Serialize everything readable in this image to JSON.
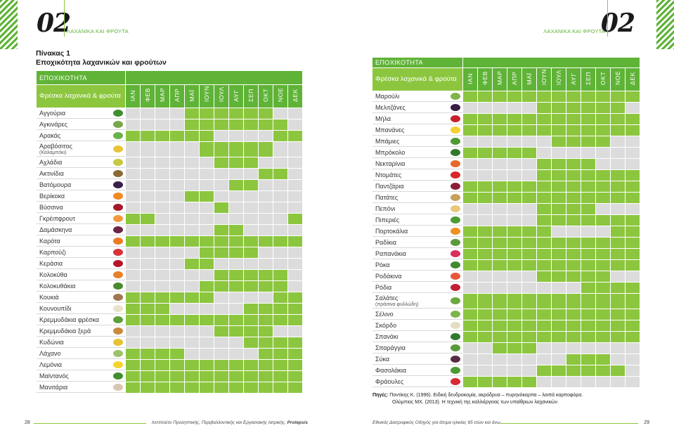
{
  "left_page": {
    "chapter_number": "02",
    "chapter_label": "ΛΑΧΑΝΙΚΑ ΚΑΙ ΦΡΟΥΤΑ",
    "table_title_line1": "Πίνακας 1",
    "table_title_line2": "Εποχικότητα λαχανικών και φρούτων",
    "page_number": "28",
    "footer_text": "Ινστιτούτο Προληπτικής, Περιβαλλοντικής και Εργασιακής Ιατρικής, ",
    "footer_brand": "Prolepsis"
  },
  "right_page": {
    "chapter_number": "02",
    "chapter_label": "ΛΑΧΑΝΙΚΑ ΚΑΙ ΦΡΟΥΤΑ",
    "page_number": "29",
    "footer_text": "Εθνικός Διατροφικός Οδηγός για άτομα ηλικίας 65 ετών και άνω"
  },
  "table_headers": {
    "season": "ΕΠΟΧΙΚΟΤΗΤΑ",
    "fresh": "Φρέσκα λαχανικά & φρούτα",
    "months": [
      "ΙΑΝ",
      "ΦΕΒ",
      "ΜΑΡ",
      "ΑΠΡ",
      "ΜΑΪ",
      "ΙΟΥΝ",
      "ΙΟΥΛ",
      "ΑΥΓ",
      "ΣΕΠ",
      "ΟΚΤ",
      "ΝΟΕ",
      "ΔΕΚ"
    ]
  },
  "sources": {
    "label": "Πηγές:",
    "line1": " Ποντίκης Κ. (1996). Ειδική δενδροκομία, ακρόδρυα – πυρηνόκαρπα – λοιπά καρποφόρα.",
    "line2": "Ολύμπιος ΜΧ. (2013). Η τεχνική της καλλιέργειας των υπαίθριων λαχανικών."
  },
  "chart_data": {
    "type": "table",
    "columns": [
      "ΙΑΝ",
      "ΦΕΒ",
      "ΜΑΡ",
      "ΑΠΡ",
      "ΜΑΪ",
      "ΙΟΥΝ",
      "ΙΟΥΛ",
      "ΑΥΓ",
      "ΣΕΠ",
      "ΟΚΤ",
      "ΝΟΕ",
      "ΔΕΚ"
    ],
    "left_rows": [
      {
        "name": "Αγγούρια",
        "icon": "cucumber-icon",
        "color": "#3f8f2e",
        "months": [
          0,
          0,
          0,
          0,
          1,
          1,
          1,
          1,
          1,
          1,
          0,
          0
        ]
      },
      {
        "name": "Αγκινάρες",
        "icon": "artichoke-icon",
        "color": "#7aa64a",
        "months": [
          0,
          0,
          0,
          0,
          1,
          1,
          1,
          1,
          1,
          1,
          1,
          0
        ]
      },
      {
        "name": "Αρακάς",
        "icon": "peas-icon",
        "color": "#6ab04c",
        "months": [
          1,
          1,
          1,
          1,
          1,
          1,
          0,
          0,
          0,
          0,
          1,
          1
        ]
      },
      {
        "name": "Αραβόσιτος",
        "sub": "(Καλαμπόκι)",
        "icon": "corn-icon",
        "color": "#e8c43a",
        "months": [
          0,
          0,
          0,
          0,
          0,
          1,
          1,
          1,
          1,
          1,
          0,
          0
        ]
      },
      {
        "name": "Αχλάδια",
        "icon": "pear-icon",
        "color": "#c6c93d",
        "months": [
          0,
          0,
          0,
          0,
          0,
          0,
          1,
          1,
          1,
          0,
          0,
          0
        ]
      },
      {
        "name": "Ακτινίδια",
        "icon": "kiwi-icon",
        "color": "#8a6a33",
        "months": [
          0,
          0,
          0,
          0,
          0,
          0,
          0,
          0,
          0,
          1,
          1,
          0
        ]
      },
      {
        "name": "Βατόμουρα",
        "icon": "blackberries-icon",
        "color": "#3a1f4a",
        "months": [
          0,
          0,
          0,
          0,
          0,
          0,
          0,
          1,
          1,
          0,
          0,
          0
        ]
      },
      {
        "name": "Βερίκοκα",
        "icon": "apricot-icon",
        "color": "#f08a24",
        "months": [
          0,
          0,
          0,
          0,
          1,
          1,
          0,
          0,
          0,
          0,
          0,
          0
        ]
      },
      {
        "name": "Βύσσινα",
        "icon": "sour-cherries-icon",
        "color": "#a5182a",
        "months": [
          0,
          0,
          0,
          0,
          0,
          0,
          1,
          0,
          0,
          0,
          0,
          0
        ]
      },
      {
        "name": "Γκρέιπφρουτ",
        "icon": "grapefruit-icon",
        "color": "#f29a3b",
        "months": [
          1,
          1,
          0,
          0,
          0,
          0,
          0,
          0,
          0,
          0,
          0,
          1
        ]
      },
      {
        "name": "Δαμάσκηνα",
        "icon": "plums-icon",
        "color": "#6b2545",
        "months": [
          0,
          0,
          0,
          0,
          0,
          0,
          1,
          1,
          0,
          0,
          0,
          0
        ]
      },
      {
        "name": "Καρότα",
        "icon": "carrot-icon",
        "color": "#ec7a23",
        "months": [
          1,
          1,
          1,
          1,
          1,
          1,
          1,
          1,
          1,
          1,
          1,
          1
        ]
      },
      {
        "name": "Καρπούζι",
        "icon": "watermelon-icon",
        "color": "#d8323a",
        "months": [
          0,
          0,
          0,
          0,
          0,
          1,
          1,
          1,
          1,
          0,
          0,
          0
        ]
      },
      {
        "name": "Κεράσια",
        "icon": "cherries-icon",
        "color": "#b5142a",
        "months": [
          0,
          0,
          0,
          0,
          1,
          1,
          0,
          0,
          0,
          0,
          0,
          0
        ]
      },
      {
        "name": "Κολοκύθα",
        "icon": "pumpkin-icon",
        "color": "#e9802a",
        "months": [
          0,
          0,
          0,
          0,
          0,
          0,
          1,
          1,
          1,
          1,
          1,
          0
        ]
      },
      {
        "name": "Κολοκυθάκια",
        "icon": "zucchini-icon",
        "color": "#4c8a2e",
        "months": [
          0,
          0,
          0,
          0,
          0,
          1,
          1,
          1,
          1,
          1,
          1,
          0
        ]
      },
      {
        "name": "Κουκιά",
        "icon": "broad-beans-icon",
        "color": "#a07850",
        "months": [
          1,
          1,
          1,
          1,
          1,
          1,
          0,
          0,
          0,
          0,
          1,
          1
        ]
      },
      {
        "name": "Κουνουπίδι",
        "icon": "cauliflower-icon",
        "color": "#e7e2c8",
        "months": [
          1,
          1,
          1,
          0,
          0,
          0,
          0,
          0,
          1,
          1,
          1,
          1
        ]
      },
      {
        "name": "Κρεμμυδάκια φρέσκα",
        "icon": "spring-onions-icon",
        "color": "#5c9e3a",
        "months": [
          1,
          1,
          1,
          1,
          1,
          1,
          1,
          1,
          1,
          1,
          1,
          1
        ]
      },
      {
        "name": "Κρεμμυδάκια ξερά",
        "icon": "dry-onions-icon",
        "color": "#c88a3c",
        "months": [
          0,
          0,
          0,
          0,
          0,
          0,
          1,
          1,
          1,
          1,
          0,
          0
        ]
      },
      {
        "name": "Κυδώνια",
        "icon": "quinces-icon",
        "color": "#e6c230",
        "months": [
          0,
          0,
          0,
          0,
          0,
          0,
          0,
          0,
          1,
          1,
          1,
          1
        ]
      },
      {
        "name": "Λάχανο",
        "icon": "cabbage-icon",
        "color": "#9cc26a",
        "months": [
          1,
          1,
          1,
          1,
          0,
          0,
          0,
          0,
          0,
          1,
          1,
          1
        ]
      },
      {
        "name": "Λεμόνια",
        "icon": "lemons-icon",
        "color": "#f2d42c",
        "months": [
          1,
          1,
          1,
          1,
          1,
          1,
          1,
          1,
          1,
          1,
          1,
          1
        ]
      },
      {
        "name": "Μαϊντανός",
        "icon": "parsley-icon",
        "color": "#3f8f2e",
        "months": [
          1,
          1,
          1,
          1,
          1,
          1,
          1,
          1,
          1,
          1,
          1,
          1
        ]
      },
      {
        "name": "Μανιτάρια",
        "icon": "mushrooms-icon",
        "color": "#d8c7b0",
        "months": [
          1,
          1,
          1,
          1,
          1,
          1,
          1,
          1,
          1,
          1,
          1,
          1
        ]
      }
    ],
    "right_rows": [
      {
        "name": "Μαρούλι",
        "icon": "lettuce-icon",
        "color": "#7fb548",
        "months": [
          1,
          1,
          1,
          1,
          1,
          1,
          1,
          1,
          1,
          1,
          1,
          1
        ]
      },
      {
        "name": "Μελιτζάνες",
        "icon": "eggplant-icon",
        "color": "#3a1d45",
        "months": [
          0,
          0,
          0,
          0,
          0,
          1,
          1,
          1,
          1,
          1,
          1,
          0
        ]
      },
      {
        "name": "Μήλα",
        "icon": "apple-icon",
        "color": "#c8202a",
        "months": [
          1,
          1,
          1,
          1,
          1,
          1,
          1,
          1,
          1,
          1,
          1,
          1
        ]
      },
      {
        "name": "Μπανάνες",
        "icon": "banana-icon",
        "color": "#f3d02e",
        "months": [
          1,
          1,
          1,
          1,
          1,
          1,
          1,
          1,
          1,
          1,
          1,
          1
        ]
      },
      {
        "name": "Μπάμιες",
        "icon": "okra-icon",
        "color": "#4f9a34",
        "months": [
          0,
          0,
          0,
          0,
          0,
          0,
          1,
          1,
          1,
          1,
          0,
          0
        ]
      },
      {
        "name": "Μπρόκολο",
        "icon": "broccoli-icon",
        "color": "#2f7a2a",
        "months": [
          1,
          1,
          1,
          1,
          1,
          0,
          0,
          0,
          0,
          0,
          0,
          0
        ]
      },
      {
        "name": "Νεκταρίνια",
        "icon": "nectarine-icon",
        "color": "#e66a2c",
        "months": [
          0,
          0,
          0,
          0,
          0,
          1,
          1,
          1,
          1,
          0,
          0,
          0
        ]
      },
      {
        "name": "Ντομάτες",
        "icon": "tomatoes-icon",
        "color": "#d9262a",
        "months": [
          0,
          0,
          0,
          0,
          0,
          1,
          1,
          1,
          1,
          1,
          1,
          1
        ]
      },
      {
        "name": "Παντζάρια",
        "icon": "beets-icon",
        "color": "#8a1f3a",
        "months": [
          1,
          1,
          1,
          1,
          1,
          1,
          1,
          1,
          1,
          1,
          1,
          1
        ]
      },
      {
        "name": "Πατάτες",
        "icon": "potatoes-icon",
        "color": "#c7a05a",
        "months": [
          1,
          1,
          1,
          1,
          1,
          1,
          1,
          1,
          1,
          1,
          1,
          1
        ]
      },
      {
        "name": "Πεπόνι",
        "icon": "melon-icon",
        "color": "#e9c77a",
        "months": [
          0,
          0,
          0,
          0,
          0,
          1,
          1,
          1,
          1,
          0,
          0,
          0
        ]
      },
      {
        "name": "Πιπεριές",
        "icon": "peppers-icon",
        "color": "#4c9a33",
        "months": [
          0,
          0,
          0,
          0,
          0,
          1,
          1,
          1,
          1,
          1,
          1,
          1
        ]
      },
      {
        "name": "Πορτοκάλια",
        "icon": "oranges-icon",
        "color": "#f0901f",
        "months": [
          1,
          1,
          1,
          1,
          1,
          1,
          0,
          0,
          0,
          0,
          1,
          1
        ]
      },
      {
        "name": "Ραδίκια",
        "icon": "chicory-icon",
        "color": "#5a9a3a",
        "months": [
          1,
          1,
          1,
          1,
          1,
          1,
          1,
          1,
          1,
          1,
          1,
          1
        ]
      },
      {
        "name": "Ραπανάκια",
        "icon": "radishes-icon",
        "color": "#d8305a",
        "months": [
          1,
          1,
          1,
          1,
          1,
          1,
          1,
          1,
          1,
          1,
          1,
          1
        ]
      },
      {
        "name": "Ρόκα",
        "icon": "arugula-icon",
        "color": "#3f8a2f",
        "months": [
          1,
          1,
          1,
          1,
          1,
          1,
          1,
          1,
          1,
          1,
          1,
          1
        ]
      },
      {
        "name": "Ροδάκινα",
        "icon": "peaches-icon",
        "color": "#e8563a",
        "months": [
          0,
          0,
          0,
          0,
          0,
          1,
          1,
          1,
          1,
          1,
          0,
          0
        ]
      },
      {
        "name": "Ρόδια",
        "icon": "pomegranates-icon",
        "color": "#c21f35",
        "months": [
          0,
          0,
          0,
          0,
          0,
          0,
          0,
          0,
          1,
          1,
          1,
          1
        ]
      },
      {
        "name": "Σαλάτες",
        "sub": "(πράσινα φυλλώδη)",
        "icon": "salad-greens-icon",
        "color": "#6aa83d",
        "months": [
          1,
          1,
          1,
          1,
          1,
          1,
          1,
          1,
          1,
          1,
          1,
          1
        ]
      },
      {
        "name": "Σέλινο",
        "icon": "celery-icon",
        "color": "#7cb64a",
        "months": [
          1,
          1,
          1,
          1,
          1,
          1,
          1,
          1,
          1,
          1,
          1,
          1
        ]
      },
      {
        "name": "Σκόρδο",
        "icon": "garlic-icon",
        "color": "#e5dcc4",
        "months": [
          1,
          1,
          1,
          1,
          1,
          1,
          1,
          1,
          1,
          1,
          1,
          1
        ]
      },
      {
        "name": "Σπανάκι",
        "icon": "spinach-icon",
        "color": "#2f7a2e",
        "months": [
          1,
          1,
          1,
          1,
          1,
          1,
          1,
          1,
          1,
          1,
          1,
          1
        ]
      },
      {
        "name": "Σπαράγγια",
        "icon": "asparagus-icon",
        "color": "#5b9a3a",
        "months": [
          0,
          0,
          1,
          1,
          1,
          0,
          0,
          0,
          0,
          0,
          0,
          0
        ]
      },
      {
        "name": "Σύκα",
        "icon": "figs-icon",
        "color": "#5a2a45",
        "months": [
          0,
          0,
          0,
          0,
          0,
          0,
          0,
          1,
          1,
          1,
          0,
          0
        ]
      },
      {
        "name": "Φασολάκια",
        "icon": "green-beans-icon",
        "color": "#4c9a33",
        "months": [
          0,
          0,
          0,
          0,
          0,
          1,
          1,
          1,
          1,
          1,
          1,
          0
        ]
      },
      {
        "name": "Φράουλες",
        "icon": "strawberries-icon",
        "color": "#d82a33",
        "months": [
          1,
          1,
          1,
          1,
          1,
          0,
          0,
          0,
          0,
          0,
          0,
          0
        ]
      }
    ]
  }
}
